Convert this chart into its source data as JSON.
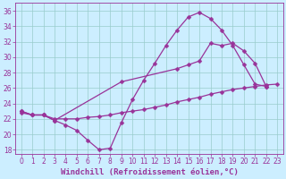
{
  "xlabel": "Windchill (Refroidissement éolien,°C)",
  "line1_x": [
    0,
    1,
    2,
    3,
    4,
    5,
    6,
    7,
    8,
    9,
    10,
    11,
    12,
    13,
    14,
    15,
    16,
    17,
    18,
    19,
    20,
    21,
    22
  ],
  "line1_y": [
    23.0,
    22.5,
    22.5,
    21.8,
    21.2,
    20.5,
    19.2,
    18.0,
    18.2,
    21.5,
    24.5,
    27.0,
    29.2,
    31.5,
    33.5,
    35.2,
    35.8,
    35.0,
    33.5,
    31.5,
    29.0,
    26.5,
    26.2
  ],
  "line2_x": [
    0,
    1,
    2,
    3,
    9,
    14,
    15,
    16,
    17,
    18,
    19,
    20,
    21,
    22
  ],
  "line2_y": [
    23.0,
    22.5,
    22.5,
    21.8,
    26.8,
    28.5,
    29.0,
    29.5,
    31.8,
    31.5,
    31.8,
    30.8,
    29.2,
    26.2
  ],
  "line3_x": [
    0,
    1,
    2,
    3,
    4,
    5,
    6,
    7,
    8,
    9,
    10,
    11,
    12,
    13,
    14,
    15,
    16,
    17,
    18,
    19,
    20,
    21,
    22,
    23
  ],
  "line3_y": [
    22.8,
    22.5,
    22.5,
    22.0,
    22.0,
    22.0,
    22.2,
    22.3,
    22.5,
    22.8,
    23.0,
    23.2,
    23.5,
    23.8,
    24.2,
    24.5,
    24.8,
    25.2,
    25.5,
    25.8,
    26.0,
    26.2,
    26.4,
    26.5
  ],
  "line_color": "#993399",
  "marker": "D",
  "markersize": 2.5,
  "linewidth": 0.9,
  "bg_color": "#cceeff",
  "grid_color": "#99cccc",
  "axis_color": "#993399",
  "text_color": "#993399",
  "xlim": [
    -0.5,
    23.5
  ],
  "ylim": [
    17.5,
    37.0
  ],
  "yticks": [
    18,
    20,
    22,
    24,
    26,
    28,
    30,
    32,
    34,
    36
  ],
  "xticks": [
    0,
    1,
    2,
    3,
    4,
    5,
    6,
    7,
    8,
    9,
    10,
    11,
    12,
    13,
    14,
    15,
    16,
    17,
    18,
    19,
    20,
    21,
    22,
    23
  ],
  "tick_fontsize": 5.5,
  "xlabel_fontsize": 6.5
}
